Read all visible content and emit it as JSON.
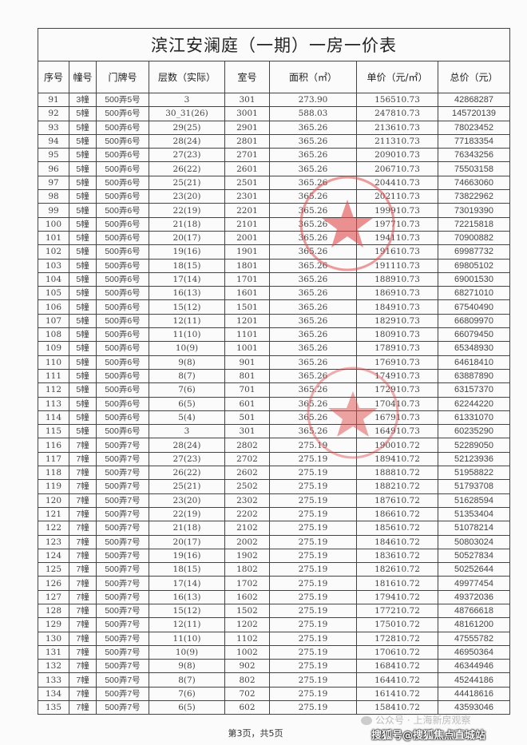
{
  "title": "滨江安澜庭（一期）一房一价表",
  "columns": [
    "序号",
    "幢号",
    "门牌号",
    "层数（实际）",
    "室号",
    "面积（㎡）",
    "单价（元/㎡）",
    "总价（元）"
  ],
  "rows": [
    [
      "91",
      "3幢",
      "500弄5号",
      "3",
      "301",
      "273.90",
      "156510.73",
      "42868287"
    ],
    [
      "92",
      "5幢",
      "500弄6号",
      "30_31(26)",
      "3001",
      "588.03",
      "247810.73",
      "145720139"
    ],
    [
      "93",
      "5幢",
      "500弄6号",
      "29(25)",
      "2901",
      "365.26",
      "213610.73",
      "78023452"
    ],
    [
      "94",
      "5幢",
      "500弄6号",
      "28(24)",
      "2801",
      "365.26",
      "211310.73",
      "77183354"
    ],
    [
      "95",
      "5幢",
      "500弄6号",
      "27(23)",
      "2701",
      "365.26",
      "209010.73",
      "76343256"
    ],
    [
      "96",
      "5幢",
      "500弄6号",
      "26(22)",
      "2601",
      "365.26",
      "206710.73",
      "75503158"
    ],
    [
      "97",
      "5幢",
      "500弄6号",
      "25(21)",
      "2501",
      "365.26",
      "204410.73",
      "74663060"
    ],
    [
      "98",
      "5幢",
      "500弄6号",
      "23(20)",
      "2301",
      "365.26",
      "202110.73",
      "73822962"
    ],
    [
      "99",
      "5幢",
      "500弄6号",
      "22(19)",
      "2201",
      "365.26",
      "199910.73",
      "73019390"
    ],
    [
      "100",
      "5幢",
      "500弄6号",
      "21(18)",
      "2101",
      "365.26",
      "197710.73",
      "72215818"
    ],
    [
      "101",
      "5幢",
      "500弄6号",
      "20(17)",
      "2001",
      "365.26",
      "194110.73",
      "70900882"
    ],
    [
      "102",
      "5幢",
      "500弄6号",
      "19(16)",
      "1901",
      "365.26",
      "191610.73",
      "69987732"
    ],
    [
      "103",
      "5幢",
      "500弄6号",
      "18(15)",
      "1801",
      "365.26",
      "191110.73",
      "69805102"
    ],
    [
      "104",
      "5幢",
      "500弄6号",
      "17(14)",
      "1701",
      "365.26",
      "188910.73",
      "69001530"
    ],
    [
      "105",
      "5幢",
      "500弄6号",
      "16(13)",
      "1601",
      "365.26",
      "186910.73",
      "68271010"
    ],
    [
      "106",
      "5幢",
      "500弄6号",
      "15(12)",
      "1501",
      "365.26",
      "184910.73",
      "67540490"
    ],
    [
      "107",
      "5幢",
      "500弄6号",
      "12(11)",
      "1201",
      "365.26",
      "182910.73",
      "66809970"
    ],
    [
      "108",
      "5幢",
      "500弄6号",
      "11(10)",
      "1101",
      "365.26",
      "180910.73",
      "66079450"
    ],
    [
      "109",
      "5幢",
      "500弄6号",
      "10(9)",
      "1001",
      "365.26",
      "178910.73",
      "65348930"
    ],
    [
      "110",
      "5幢",
      "500弄6号",
      "9(8)",
      "901",
      "365.26",
      "176910.73",
      "64618410"
    ],
    [
      "111",
      "5幢",
      "500弄6号",
      "8(7)",
      "801",
      "365.26",
      "174910.73",
      "63887890"
    ],
    [
      "112",
      "5幢",
      "500弄6号",
      "7(6)",
      "701",
      "365.26",
      "172910.73",
      "63157370"
    ],
    [
      "113",
      "5幢",
      "500弄6号",
      "6(5)",
      "601",
      "365.26",
      "170410.73",
      "62244220"
    ],
    [
      "114",
      "5幢",
      "500弄6号",
      "5(4)",
      "501",
      "365.26",
      "167910.73",
      "61331070"
    ],
    [
      "115",
      "5幢",
      "500弄6号",
      "3",
      "301",
      "365.26",
      "164910.73",
      "60235290"
    ],
    [
      "116",
      "7幢",
      "500弄7号",
      "28(24)",
      "2802",
      "275.19",
      "190010.72",
      "52289050"
    ],
    [
      "117",
      "7幢",
      "500弄7号",
      "27(23)",
      "2702",
      "275.19",
      "189410.72",
      "52123936"
    ],
    [
      "118",
      "7幢",
      "500弄7号",
      "26(22)",
      "2602",
      "275.19",
      "188810.72",
      "51958822"
    ],
    [
      "119",
      "7幢",
      "500弄7号",
      "25(21)",
      "2502",
      "275.19",
      "188210.72",
      "51793708"
    ],
    [
      "120",
      "7幢",
      "500弄7号",
      "23(20)",
      "2302",
      "275.19",
      "187610.72",
      "51628594"
    ],
    [
      "121",
      "7幢",
      "500弄7号",
      "22(19)",
      "2202",
      "275.19",
      "186610.72",
      "51353404"
    ],
    [
      "122",
      "7幢",
      "500弄7号",
      "21(18)",
      "2102",
      "275.19",
      "185610.72",
      "51078214"
    ],
    [
      "123",
      "7幢",
      "500弄7号",
      "20(17)",
      "2002",
      "275.19",
      "184610.72",
      "50803024"
    ],
    [
      "124",
      "7幢",
      "500弄7号",
      "19(16)",
      "1902",
      "275.19",
      "183610.72",
      "50527834"
    ],
    [
      "125",
      "7幢",
      "500弄7号",
      "18(15)",
      "1802",
      "275.19",
      "182610.72",
      "50252644"
    ],
    [
      "126",
      "7幢",
      "500弄7号",
      "17(14)",
      "1702",
      "275.19",
      "181610.72",
      "49977454"
    ],
    [
      "127",
      "7幢",
      "500弄7号",
      "16(13)",
      "1602",
      "275.19",
      "179410.72",
      "49372036"
    ],
    [
      "128",
      "7幢",
      "500弄7号",
      "15(12)",
      "1502",
      "275.19",
      "177210.72",
      "48766618"
    ],
    [
      "129",
      "7幢",
      "500弄7号",
      "12(11)",
      "1202",
      "275.19",
      "175010.72",
      "48161200"
    ],
    [
      "130",
      "7幢",
      "500弄7号",
      "11(10)",
      "1102",
      "275.19",
      "172810.72",
      "47555782"
    ],
    [
      "131",
      "7幢",
      "500弄7号",
      "10(9)",
      "1002",
      "275.19",
      "170610.72",
      "46950364"
    ],
    [
      "132",
      "7幢",
      "500弄7号",
      "9(8)",
      "902",
      "275.19",
      "168410.72",
      "46344946"
    ],
    [
      "133",
      "7幢",
      "500弄7号",
      "8(7)",
      "802",
      "275.19",
      "164410.72",
      "45244186"
    ],
    [
      "134",
      "7幢",
      "500弄7号",
      "7(6)",
      "702",
      "275.19",
      "161410.72",
      "44418616"
    ],
    [
      "135",
      "7幢",
      "500弄7号",
      "6(5)",
      "602",
      "275.19",
      "158410.72",
      "43593046"
    ]
  ],
  "footer": {
    "page": "第3页，共5页"
  },
  "watermarks": {
    "wechat": "公众号 · 上海新房观察",
    "sohu": "搜狐号@搜狐焦点直城站"
  },
  "seal": {
    "color": "#e04a4a",
    "icon": "red-star-seal-icon"
  }
}
